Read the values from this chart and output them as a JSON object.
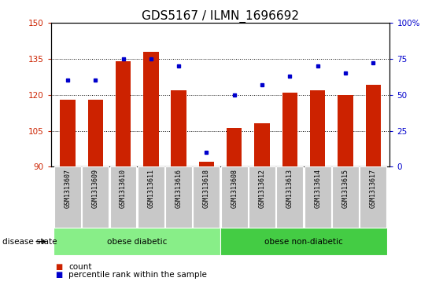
{
  "title": "GDS5167 / ILMN_1696692",
  "samples": [
    "GSM1313607",
    "GSM1313609",
    "GSM1313610",
    "GSM1313611",
    "GSM1313616",
    "GSM1313618",
    "GSM1313608",
    "GSM1313612",
    "GSM1313613",
    "GSM1313614",
    "GSM1313615",
    "GSM1313617"
  ],
  "count_values": [
    118,
    118,
    134,
    138,
    122,
    92,
    106,
    108,
    121,
    122,
    120,
    124
  ],
  "percentile_values": [
    60,
    60,
    75,
    75,
    70,
    10,
    50,
    57,
    63,
    70,
    65,
    72
  ],
  "bar_color": "#cc2200",
  "dot_color": "#0000cc",
  "left_ylim": [
    90,
    150
  ],
  "right_ylim": [
    0,
    100
  ],
  "left_yticks": [
    90,
    105,
    120,
    135,
    150
  ],
  "right_yticks": [
    0,
    25,
    50,
    75,
    100
  ],
  "right_yticklabels": [
    "0",
    "25",
    "50",
    "75",
    "100%"
  ],
  "grid_values": [
    105,
    120,
    135
  ],
  "bar_bottom": 90,
  "groups": [
    {
      "label": "obese diabetic",
      "start": 0,
      "end": 6,
      "color": "#88ee88"
    },
    {
      "label": "obese non-diabetic",
      "start": 6,
      "end": 12,
      "color": "#44cc44"
    }
  ],
  "disease_state_label": "disease state",
  "legend_count_label": "count",
  "legend_pct_label": "percentile rank within the sample",
  "bar_color_legend": "#cc2200",
  "dot_color_legend": "#0000cc",
  "title_fontsize": 11,
  "tick_fontsize": 7.5,
  "background_color": "#ffffff",
  "xticklabel_bg": "#c8c8c8",
  "bar_width": 0.55
}
